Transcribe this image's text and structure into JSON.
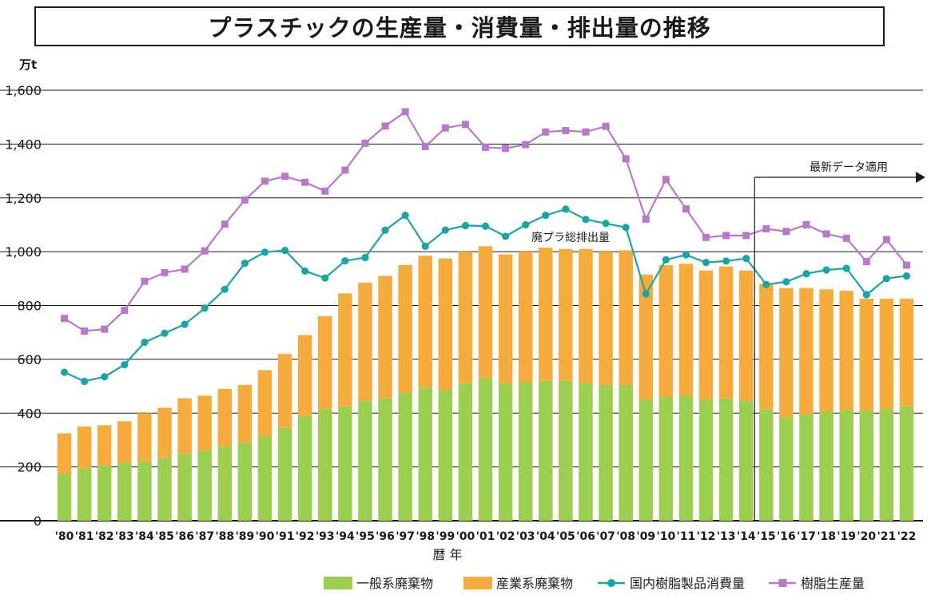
{
  "chart_data": {
    "type": "bar+line",
    "title": "プラスチックの生産量・消費量・排出量の推移",
    "y_unit": "万t",
    "xlabel": "暦 年",
    "ylim": [
      0,
      1600
    ],
    "yticks": [
      0,
      200,
      400,
      600,
      800,
      1000,
      1200,
      1400,
      1600
    ],
    "ytick_labels": [
      "0",
      "200",
      "400",
      "600",
      "800",
      "1,000",
      "1,200",
      "1,400",
      "1,600"
    ],
    "categories": [
      "'80",
      "'81",
      "'82",
      "'83",
      "'84",
      "'85",
      "'86",
      "'87",
      "'88",
      "'89",
      "'90",
      "'91",
      "'92",
      "'93",
      "'94",
      "'95",
      "'96",
      "'97",
      "'98",
      "'99",
      "'00",
      "'01",
      "'02",
      "'03",
      "'04",
      "'05",
      "'06",
      "'07",
      "'08",
      "'09",
      "'10",
      "'11",
      "'12",
      "'13",
      "'14",
      "'15",
      "'16",
      "'17",
      "'18",
      "'19",
      "'20",
      "'21",
      "'22"
    ],
    "bar_series": [
      {
        "name": "一般系廃棄物",
        "color": "#9cce4f",
        "values": [
          175,
          195,
          205,
          215,
          220,
          235,
          250,
          260,
          275,
          290,
          315,
          345,
          390,
          415,
          425,
          445,
          455,
          475,
          495,
          485,
          510,
          530,
          510,
          515,
          520,
          520,
          510,
          505,
          505,
          450,
          460,
          465,
          450,
          455,
          445,
          415,
          385,
          395,
          405,
          410,
          410,
          415,
          425
        ]
      },
      {
        "name": "産業系廃棄物",
        "color": "#f6ac3c",
        "values": [
          150,
          155,
          150,
          155,
          180,
          185,
          205,
          205,
          215,
          215,
          245,
          275,
          300,
          345,
          420,
          440,
          455,
          475,
          490,
          490,
          490,
          490,
          480,
          485,
          495,
          490,
          500,
          495,
          500,
          465,
          490,
          490,
          480,
          490,
          485,
          465,
          480,
          470,
          455,
          445,
          415,
          410,
          400
        ]
      }
    ],
    "line_series": [
      {
        "name": "国内樹脂製品消費量",
        "color": "#1aa5a5",
        "marker": "circle",
        "values": [
          552,
          518,
          535,
          580,
          663,
          697,
          730,
          790,
          860,
          957,
          998,
          1005,
          928,
          902,
          966,
          978,
          1080,
          1135,
          1020,
          1080,
          1097,
          1095,
          1057,
          1100,
          1135,
          1158,
          1120,
          1105,
          1090,
          843,
          970,
          988,
          960,
          965,
          975,
          878,
          888,
          918,
          932,
          938,
          840,
          900,
          910
        ]
      },
      {
        "name": "樹脂生産量",
        "color": "#b978c9",
        "marker": "square",
        "values": [
          752,
          705,
          712,
          782,
          890,
          922,
          935,
          1003,
          1102,
          1192,
          1262,
          1280,
          1258,
          1225,
          1303,
          1403,
          1467,
          1520,
          1391,
          1460,
          1473,
          1388,
          1384,
          1398,
          1445,
          1450,
          1445,
          1466,
          1345,
          1121,
          1268,
          1159,
          1053,
          1060,
          1060,
          1085,
          1075,
          1100,
          1066,
          1050,
          963,
          1045,
          950
        ]
      }
    ],
    "annotations": {
      "waste_total": "廃プラ総排出量",
      "latest_data": "最新データ適用"
    },
    "legend_position": "bottom-right"
  }
}
